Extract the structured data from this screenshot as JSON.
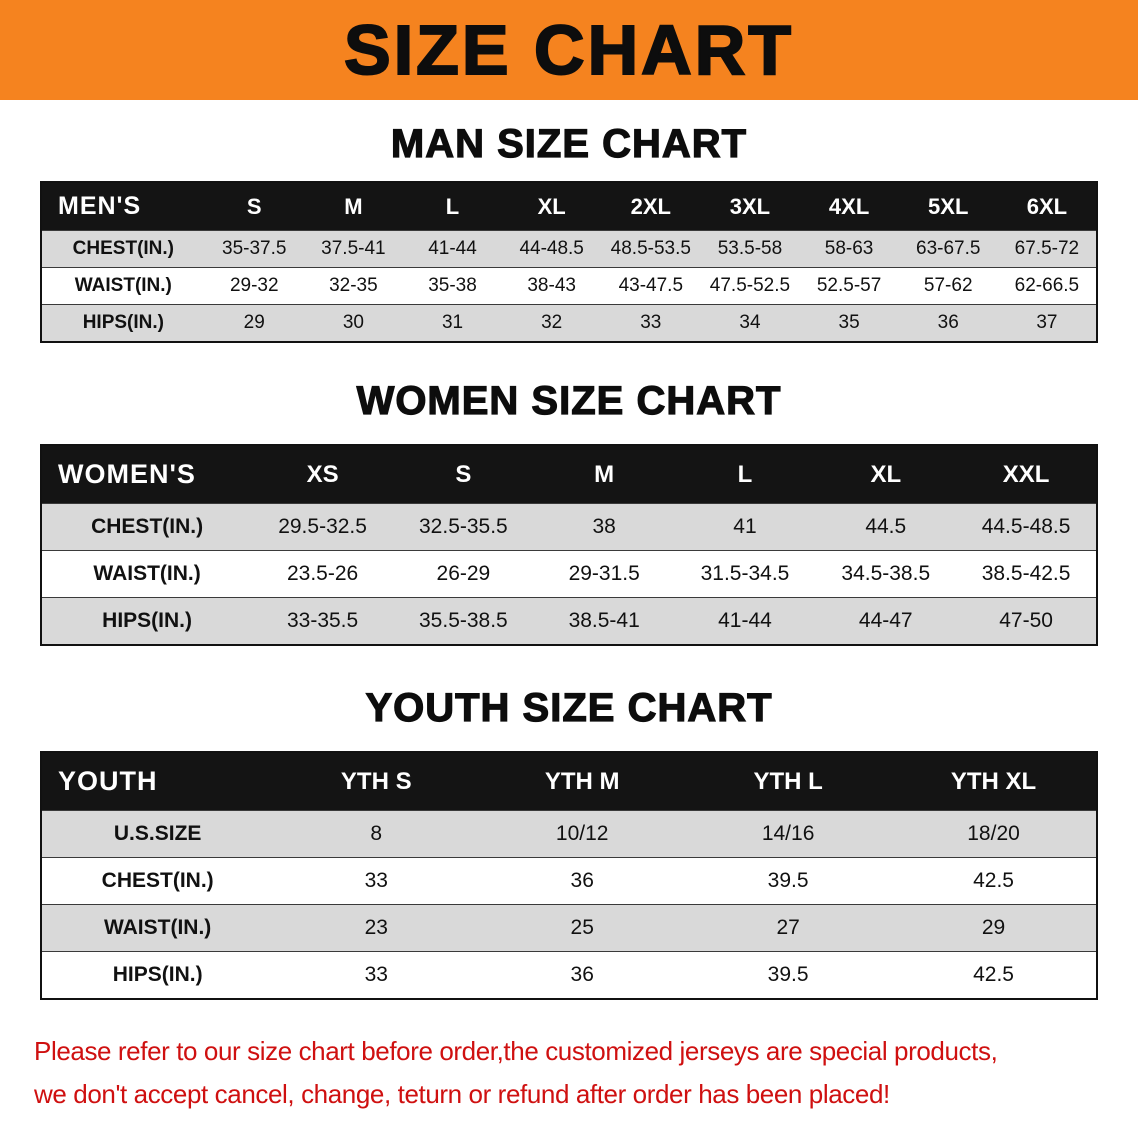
{
  "banner": {
    "title": "SIZE CHART"
  },
  "sections": [
    {
      "heading": "MAN SIZE CHART",
      "table": {
        "label": "MEN'S",
        "columns": [
          "S",
          "M",
          "L",
          "XL",
          "2XL",
          "3XL",
          "4XL",
          "5XL",
          "6XL"
        ],
        "rows": [
          {
            "label": "CHEST(IN.)",
            "values": [
              "35-37.5",
              "37.5-41",
              "41-44",
              "44-48.5",
              "48.5-53.5",
              "53.5-58",
              "58-63",
              "63-67.5",
              "67.5-72"
            ]
          },
          {
            "label": "WAIST(IN.)",
            "values": [
              "29-32",
              "32-35",
              "35-38",
              "38-43",
              "43-47.5",
              "47.5-52.5",
              "52.5-57",
              "57-62",
              "62-66.5"
            ]
          },
          {
            "label": "HIPS(IN.)",
            "values": [
              "29",
              "30",
              "31",
              "32",
              "33",
              "34",
              "35",
              "36",
              "37"
            ]
          }
        ]
      }
    },
    {
      "heading": "WOMEN SIZE CHART",
      "table": {
        "label": "WOMEN'S",
        "columns": [
          "XS",
          "S",
          "M",
          "L",
          "XL",
          "XXL"
        ],
        "rows": [
          {
            "label": "CHEST(IN.)",
            "values": [
              "29.5-32.5",
              "32.5-35.5",
              "38",
              "41",
              "44.5",
              "44.5-48.5"
            ]
          },
          {
            "label": "WAIST(IN.)",
            "values": [
              "23.5-26",
              "26-29",
              "29-31.5",
              "31.5-34.5",
              "34.5-38.5",
              "38.5-42.5"
            ]
          },
          {
            "label": "HIPS(IN.)",
            "values": [
              "33-35.5",
              "35.5-38.5",
              "38.5-41",
              "41-44",
              "44-47",
              "47-50"
            ]
          }
        ]
      }
    },
    {
      "heading": "YOUTH SIZE CHART",
      "table": {
        "label": "YOUTH",
        "columns": [
          "YTH S",
          "YTH M",
          "YTH L",
          "YTH XL"
        ],
        "rows": [
          {
            "label": "U.S.SIZE",
            "values": [
              "8",
              "10/12",
              "14/16",
              "18/20"
            ]
          },
          {
            "label": "CHEST(IN.)",
            "values": [
              "33",
              "36",
              "39.5",
              "42.5"
            ]
          },
          {
            "label": "WAIST(IN.)",
            "values": [
              "23",
              "25",
              "27",
              "29"
            ]
          },
          {
            "label": "HIPS(IN.)",
            "values": [
              "33",
              "36",
              "39.5",
              "42.5"
            ]
          }
        ]
      }
    }
  ],
  "footer": {
    "line1": "Please refer to our size chart before order,the customized jerseys are special products,",
    "line2": "we don't accept cancel, change, teturn or refund after order has been placed!"
  },
  "colors": {
    "banner_orange": "#f5831f",
    "table_header_black": "#141414",
    "row_gray": "#d9d9d9",
    "note_red": "#cf1010"
  }
}
